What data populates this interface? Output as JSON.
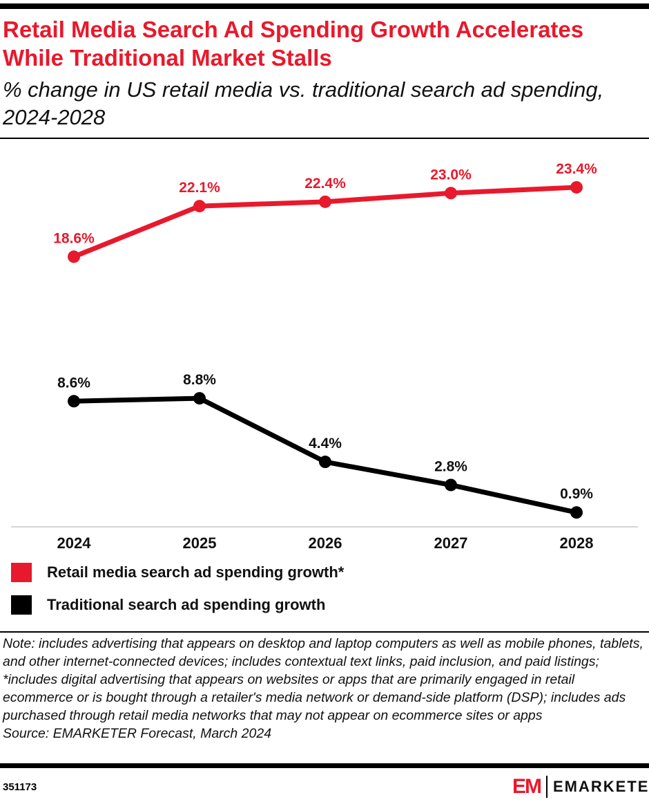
{
  "header": {
    "title": "Retail Media Search Ad Spending Growth Accelerates While Traditional Market Stalls",
    "subtitle": "% change in US retail media vs. traditional search ad spending, 2024-2028"
  },
  "chart_data": {
    "type": "line",
    "categories": [
      "2024",
      "2025",
      "2026",
      "2027",
      "2028"
    ],
    "series": [
      {
        "name": "Retail media search ad spending growth*",
        "color": "#e8192c",
        "values": [
          18.6,
          22.1,
          22.4,
          23.0,
          23.4
        ],
        "labels": [
          "18.6%",
          "22.1%",
          "22.4%",
          "23.0%",
          "23.4%"
        ]
      },
      {
        "name": "Traditional search ad spending growth",
        "color": "#000000",
        "values": [
          8.6,
          8.8,
          4.4,
          2.8,
          0.9
        ],
        "labels": [
          "8.6%",
          "8.8%",
          "4.4%",
          "2.8%",
          "0.9%"
        ]
      }
    ],
    "ylim": [
      0,
      25
    ],
    "grid": false,
    "legend_position": "bottom-left"
  },
  "footer": {
    "note": "Note: includes advertising that appears on desktop and laptop computers as well as mobile phones, tablets, and other internet-connected devices; includes contextual text links, paid inclusion, and paid listings; *includes digital advertising that appears on websites or apps that are primarily engaged in retail ecommerce or is bought through a retailer's media network or demand-side platform (DSP); includes ads purchased through retail media networks that may not appear on ecommerce sites or apps",
    "source": "Source: EMARKETER Forecast, March 2024",
    "chart_id": "351173",
    "logo_text": "EMARKETER"
  }
}
